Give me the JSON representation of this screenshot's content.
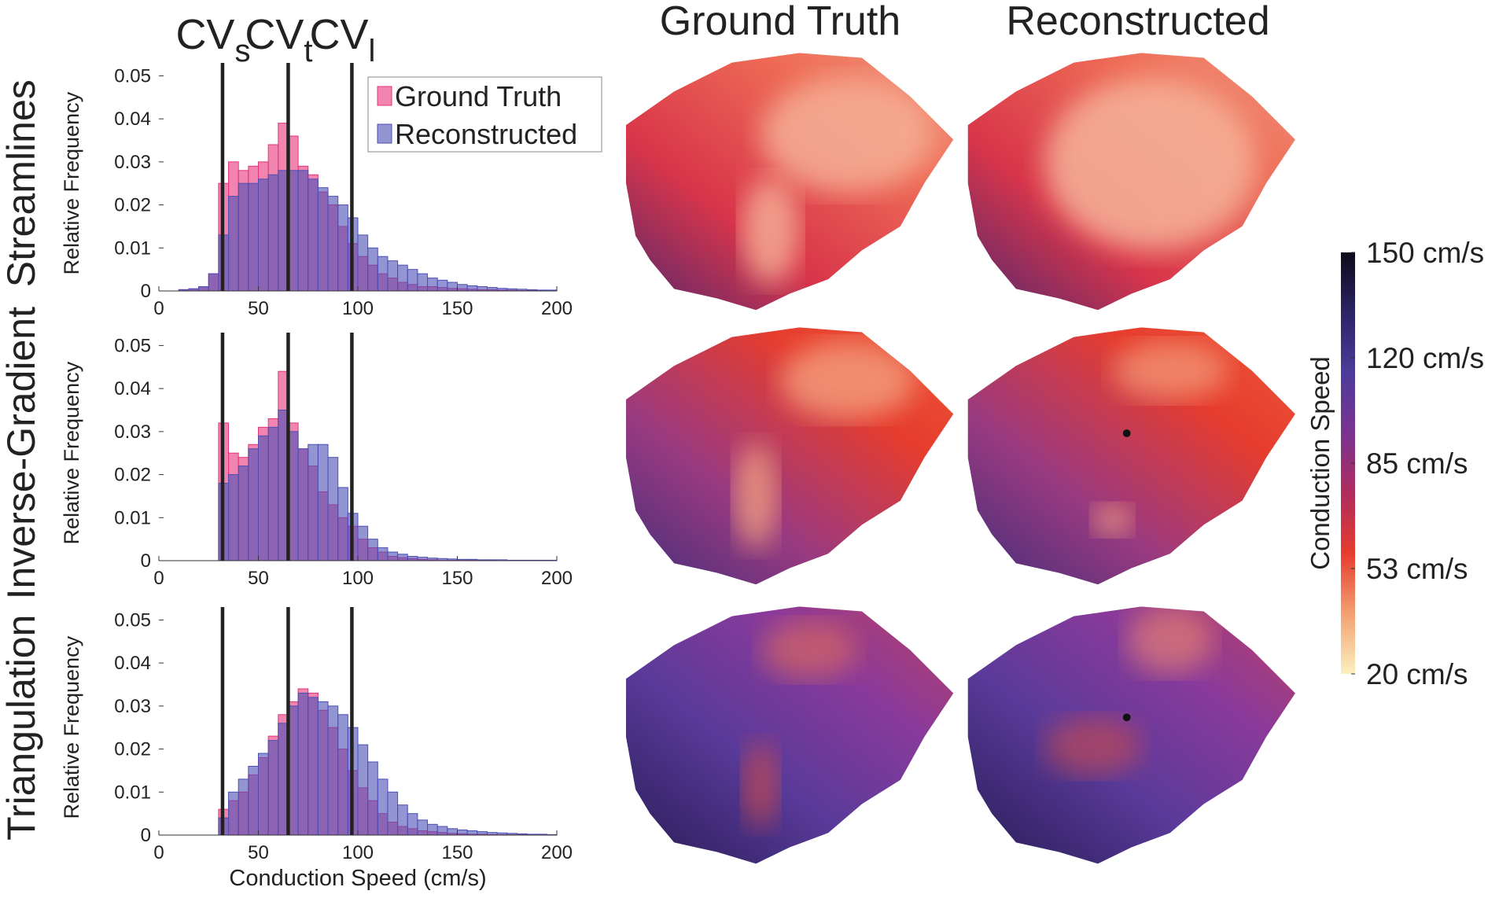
{
  "panel_titles": [
    "Ground Truth",
    "Reconstructed"
  ],
  "reference_line_labels": [
    {
      "text": "CV",
      "subscript": "s"
    },
    {
      "text": "CV",
      "subscript": "t"
    },
    {
      "text": "CV",
      "subscript": "l"
    }
  ],
  "chart_data": [
    {
      "type": "histogram",
      "title": "Streamlines",
      "ylabel": "Relative Frequency",
      "legend": "upper right",
      "xlim": [
        0,
        200
      ],
      "xticks": [
        0,
        50,
        100,
        150,
        200
      ],
      "ylim": [
        0,
        0.053
      ],
      "yticks": [
        0,
        0.01,
        0.02,
        0.03,
        0.04,
        0.05
      ],
      "reference_lines": [
        32,
        65,
        97
      ],
      "bins": [
        0,
        5,
        10,
        15,
        20,
        25,
        30,
        35,
        40,
        45,
        50,
        55,
        60,
        65,
        70,
        75,
        80,
        85,
        90,
        95,
        100,
        105,
        110,
        115,
        120,
        125,
        130,
        135,
        140,
        145,
        150,
        155,
        160,
        165,
        170,
        175,
        180,
        185,
        190,
        195,
        200
      ],
      "series": [
        {
          "name": "Ground Truth",
          "color": "#e8337a",
          "values": [
            0,
            0,
            0.0003,
            0.0005,
            0.001,
            0.004,
            0.025,
            0.03,
            0.028,
            0.029,
            0.03,
            0.034,
            0.039,
            0.036,
            0.029,
            0.027,
            0.023,
            0.02,
            0.015,
            0.011,
            0.008,
            0.006,
            0.004,
            0.003,
            0.002,
            0.0015,
            0.001,
            0.001,
            0.0008,
            0.0006,
            0.0005,
            0.0004,
            0.0003,
            0.0003,
            0.0002,
            0.0002,
            0.0001,
            0.0001,
            0.0001,
            0.0001
          ]
        },
        {
          "name": "Reconstructed",
          "color": "#4b4fb5",
          "values": [
            0,
            0,
            0.0003,
            0.0005,
            0.001,
            0.004,
            0.013,
            0.022,
            0.025,
            0.025,
            0.026,
            0.027,
            0.028,
            0.028,
            0.028,
            0.026,
            0.024,
            0.022,
            0.02,
            0.017,
            0.013,
            0.01,
            0.008,
            0.007,
            0.006,
            0.005,
            0.004,
            0.003,
            0.0025,
            0.002,
            0.0015,
            0.0012,
            0.001,
            0.0008,
            0.0006,
            0.0005,
            0.0004,
            0.0003,
            0.0002,
            0.0002
          ]
        }
      ]
    },
    {
      "type": "histogram",
      "title": "Inverse-Gradient",
      "ylabel": "Relative Frequency",
      "xlim": [
        0,
        200
      ],
      "xticks": [
        0,
        50,
        100,
        150,
        200
      ],
      "ylim": [
        0,
        0.053
      ],
      "yticks": [
        0,
        0.01,
        0.02,
        0.03,
        0.04,
        0.05
      ],
      "reference_lines": [
        32,
        65,
        97
      ],
      "bins": [
        0,
        5,
        10,
        15,
        20,
        25,
        30,
        35,
        40,
        45,
        50,
        55,
        60,
        65,
        70,
        75,
        80,
        85,
        90,
        95,
        100,
        105,
        110,
        115,
        120,
        125,
        130,
        135,
        140,
        145,
        150,
        155,
        160,
        165,
        170,
        175,
        180,
        185,
        190,
        195,
        200
      ],
      "series": [
        {
          "color": "#e8337a",
          "values": [
            0,
            0,
            0,
            0,
            0,
            0,
            0.032,
            0.025,
            0.024,
            0.027,
            0.031,
            0.033,
            0.044,
            0.032,
            0.026,
            0.022,
            0.016,
            0.013,
            0.01,
            0.008,
            0.005,
            0.003,
            0.002,
            0.001,
            0.0007,
            0.0005,
            0.0003,
            0.0002,
            0.0001,
            0.0001,
            0.0001,
            0.0001,
            0.0001,
            0.0001,
            0,
            0,
            0,
            0,
            0,
            0
          ]
        },
        {
          "color": "#4b4fb5",
          "values": [
            0,
            0,
            0,
            0,
            0,
            0,
            0.018,
            0.02,
            0.022,
            0.026,
            0.029,
            0.031,
            0.035,
            0.03,
            0.026,
            0.027,
            0.027,
            0.024,
            0.017,
            0.011,
            0.008,
            0.005,
            0.003,
            0.002,
            0.0015,
            0.001,
            0.0008,
            0.0006,
            0.0005,
            0.0004,
            0.0003,
            0.0003,
            0.0002,
            0.0002,
            0.0002,
            0.0001,
            0.0001,
            0.0001,
            0.0001,
            0.0001
          ]
        }
      ]
    },
    {
      "type": "histogram",
      "title": "Triangulation",
      "ylabel": "Relative Frequency",
      "xlabel": "Conduction Speed (cm/s)",
      "xlim": [
        0,
        200
      ],
      "xticks": [
        0,
        50,
        100,
        150,
        200
      ],
      "ylim": [
        0,
        0.053
      ],
      "yticks": [
        0,
        0.01,
        0.02,
        0.03,
        0.04,
        0.05
      ],
      "reference_lines": [
        32,
        65,
        97
      ],
      "bins": [
        0,
        5,
        10,
        15,
        20,
        25,
        30,
        35,
        40,
        45,
        50,
        55,
        60,
        65,
        70,
        75,
        80,
        85,
        90,
        95,
        100,
        105,
        110,
        115,
        120,
        125,
        130,
        135,
        140,
        145,
        150,
        155,
        160,
        165,
        170,
        175,
        180,
        185,
        190,
        195,
        200
      ],
      "series": [
        {
          "color": "#e8337a",
          "values": [
            0,
            0,
            0,
            0,
            0,
            0,
            0.006,
            0.008,
            0.01,
            0.014,
            0.018,
            0.023,
            0.028,
            0.031,
            0.034,
            0.033,
            0.029,
            0.025,
            0.02,
            0.015,
            0.011,
            0.008,
            0.005,
            0.003,
            0.002,
            0.0015,
            0.001,
            0.0008,
            0.0006,
            0.0004,
            0.0003,
            0.0002,
            0.0002,
            0.0001,
            0.0001,
            0.0001,
            0.0001,
            0.0001,
            0.0001,
            0.0001
          ]
        },
        {
          "color": "#4b4fb5",
          "values": [
            0,
            0,
            0,
            0,
            0,
            0,
            0.004,
            0.01,
            0.013,
            0.016,
            0.019,
            0.022,
            0.026,
            0.03,
            0.033,
            0.032,
            0.031,
            0.03,
            0.028,
            0.025,
            0.021,
            0.017,
            0.013,
            0.01,
            0.007,
            0.005,
            0.0035,
            0.0025,
            0.002,
            0.0015,
            0.0012,
            0.001,
            0.0008,
            0.0006,
            0.0005,
            0.0004,
            0.0003,
            0.0002,
            0.0002,
            0.0001
          ]
        }
      ]
    },
    {
      "type": "colorbar",
      "label": "Conduction Speed",
      "ylim": [
        20,
        150
      ],
      "yticks": [
        {
          "value": 20,
          "label": "20 cm/s"
        },
        {
          "value": 53,
          "label": "53 cm/s"
        },
        {
          "value": 85,
          "label": "85 cm/s"
        },
        {
          "value": 120,
          "label": "120 cm/s"
        },
        {
          "value": 150,
          "label": "150 cm/s"
        }
      ],
      "colors": [
        "#fbf0c0",
        "#f3a070",
        "#e63c2e",
        "#b02c5e",
        "#7a3392",
        "#4d3b9a",
        "#2b2466",
        "#0d0a1a"
      ]
    }
  ]
}
